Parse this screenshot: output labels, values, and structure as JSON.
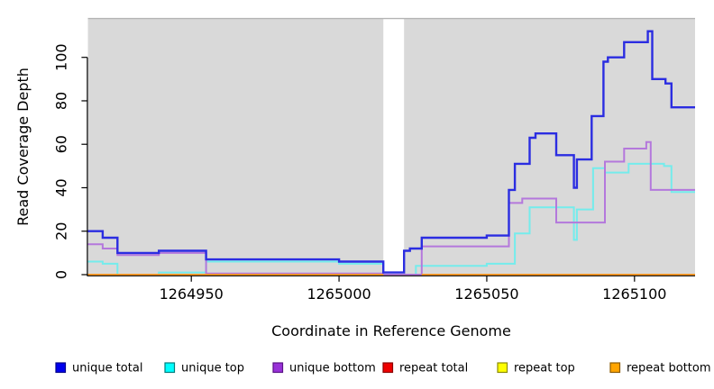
{
  "window": {
    "background": "#ffffff"
  },
  "chart_data": {
    "type": "line",
    "line_style": "step",
    "title": "",
    "xlabel": "Coordinate in Reference Genome",
    "ylabel": "Read Coverage Depth",
    "xlim": [
      1264915,
      1265120.5
    ],
    "ylim": [
      -1,
      118
    ],
    "x_ticks": [
      1264950,
      1265000,
      1265050,
      1265100
    ],
    "y_ticks": [
      0,
      20,
      40,
      60,
      80,
      100
    ],
    "grid": false,
    "plot_background": "#d9d9d9",
    "masked_region": {
      "x_start": 1265015,
      "x_end": 1265022,
      "color": "#ffffff"
    },
    "legend_position": "bottom",
    "series": [
      {
        "name": "unique total",
        "line_color": "#2b2de1",
        "line_width": 2.4,
        "steps": [
          [
            1264915,
            20
          ],
          [
            1264920,
            17
          ],
          [
            1264925,
            10
          ],
          [
            1264939,
            11
          ],
          [
            1264955,
            7
          ],
          [
            1265000,
            6
          ],
          [
            1265015,
            1
          ],
          [
            1265022,
            11
          ],
          [
            1265024,
            12
          ],
          [
            1265028,
            17
          ],
          [
            1265050,
            18
          ],
          [
            1265057.5,
            39
          ],
          [
            1265059.5,
            51
          ],
          [
            1265064.5,
            63
          ],
          [
            1265066.5,
            65
          ],
          [
            1265073.5,
            55
          ],
          [
            1265079.5,
            40
          ],
          [
            1265080.5,
            53
          ],
          [
            1265085.5,
            73
          ],
          [
            1265089.5,
            98
          ],
          [
            1265091,
            100
          ],
          [
            1265096.5,
            107
          ],
          [
            1265104.5,
            112
          ],
          [
            1265106,
            90
          ],
          [
            1265110.5,
            88
          ],
          [
            1265112.5,
            77
          ]
        ]
      },
      {
        "name": "unique top",
        "line_color": "#74ecec",
        "line_width": 2,
        "steps": [
          [
            1264915,
            6
          ],
          [
            1264920,
            5
          ],
          [
            1264925,
            0
          ],
          [
            1264939,
            1
          ],
          [
            1264955,
            6
          ],
          [
            1265000,
            5
          ],
          [
            1265015,
            0
          ],
          [
            1265026,
            4
          ],
          [
            1265050,
            5
          ],
          [
            1265059.5,
            19
          ],
          [
            1265064.5,
            31
          ],
          [
            1265079.5,
            16
          ],
          [
            1265080.5,
            30
          ],
          [
            1265086,
            49
          ],
          [
            1265090,
            47
          ],
          [
            1265098,
            51
          ],
          [
            1265110,
            50
          ],
          [
            1265112.5,
            38
          ]
        ]
      },
      {
        "name": "unique bottom",
        "line_color": "#b478dc",
        "line_width": 2,
        "steps": [
          [
            1264915,
            14
          ],
          [
            1264920,
            12
          ],
          [
            1264925,
            9
          ],
          [
            1264939,
            10
          ],
          [
            1264955,
            0.5
          ],
          [
            1265015,
            0
          ],
          [
            1265028,
            13
          ],
          [
            1265057.5,
            33
          ],
          [
            1265062,
            35
          ],
          [
            1265073.5,
            24
          ],
          [
            1265090,
            52
          ],
          [
            1265096.5,
            58
          ],
          [
            1265104,
            61
          ],
          [
            1265105.5,
            39
          ]
        ]
      },
      {
        "name": "repeat total",
        "line_color": "#dc1414",
        "line_width": 2,
        "steps": [
          [
            1264915,
            0
          ]
        ]
      },
      {
        "name": "repeat top",
        "line_color": "#f2f200",
        "line_width": 2,
        "steps": [
          [
            1264915,
            0
          ]
        ]
      },
      {
        "name": "repeat bottom",
        "line_color": "#ff9d26",
        "line_width": 2,
        "steps": [
          [
            1264915,
            0
          ]
        ],
        "gap": [
          1265015,
          1265028
        ]
      }
    ],
    "draw_order": [
      3,
      4,
      1,
      2,
      0,
      5
    ]
  },
  "legend": {
    "items": [
      {
        "label": "unique total",
        "swatch_fill": "#0000ee",
        "swatch_border": "#00008b"
      },
      {
        "label": "unique top",
        "swatch_fill": "#00ffff",
        "swatch_border": "#007d7d"
      },
      {
        "label": "unique bottom",
        "swatch_fill": "#9932d8",
        "swatch_border": "#5a1287"
      },
      {
        "label": "repeat total",
        "swatch_fill": "#ee0000",
        "swatch_border": "#8b0000"
      },
      {
        "label": "repeat top",
        "swatch_fill": "#ffff00",
        "swatch_border": "#8b8b00"
      },
      {
        "label": "repeat bottom",
        "swatch_fill": "#ffa500",
        "swatch_border": "#8b5a00"
      }
    ]
  }
}
